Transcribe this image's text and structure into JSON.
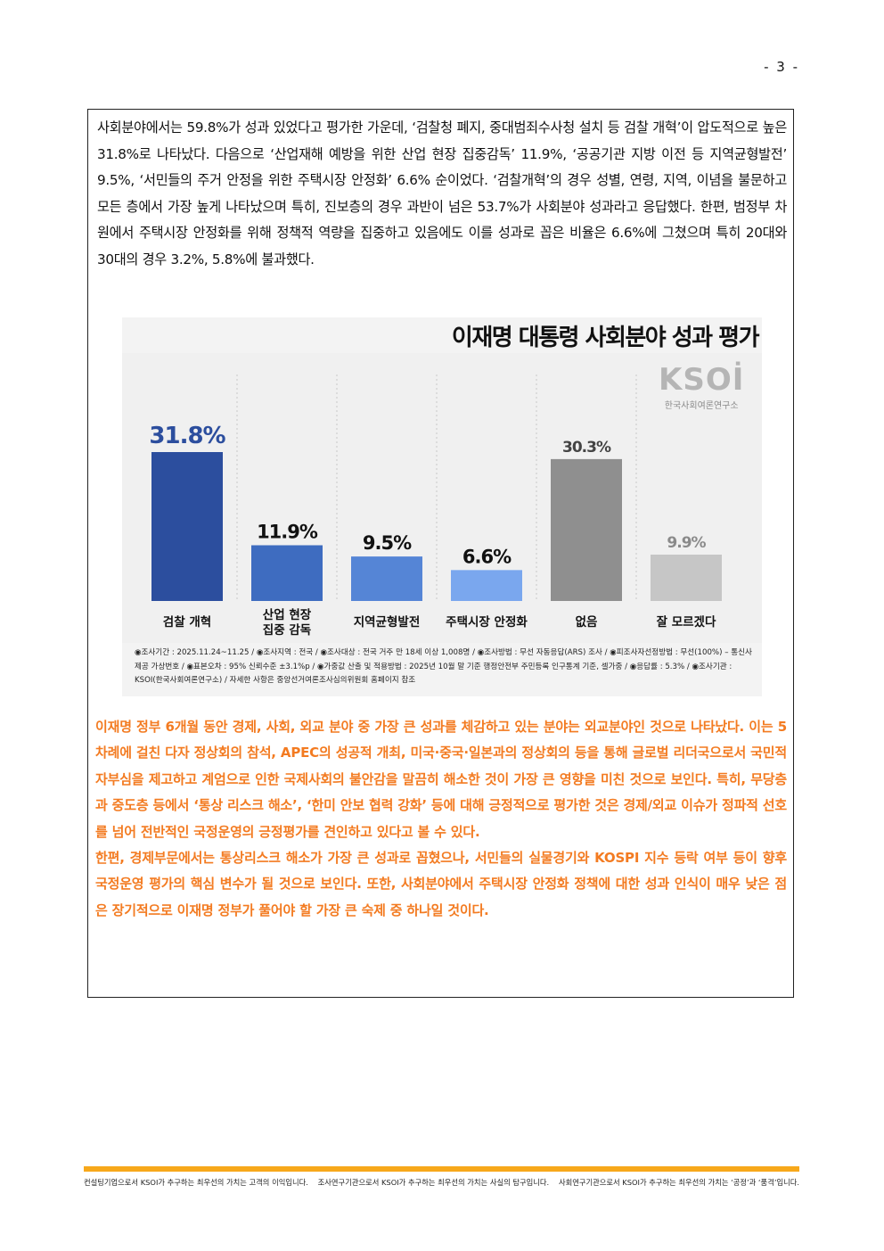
{
  "page_number": "- 3 -",
  "intro_text": "사회분야에서는 59.8%가 성과 있었다고 평가한 가운데, ‘검찰청 폐지, 중대범죄수사청 설치 등 검찰 개혁’이 압도적으로 높은 31.8%로 나타났다. 다음으로 ‘산업재해 예방을 위한 산업 현장 집중감독’ 11.9%, ‘공공기관 지방 이전 등 지역균형발전’ 9.5%, ‘서민들의 주거 안정을 위한 주택시장 안정화’ 6.6% 순이었다. ‘검찰개혁’의 경우 성별, 연령, 지역, 이념을 불문하고 모든 층에서 가장 높게 나타났으며 특히, 진보층의 경우 과반이 넘은 53.7%가 사회분야 성과라고 응답했다. 한편, 범정부 차원에서 주택시장 안정화를 위해 정책적 역량을 집중하고 있음에도 이를 성과로 꼽은 비율은 6.6%에 그쳤으며 특히 20대와 30대의 경우 3.2%, 5.8%에 불과했다.",
  "logo": {
    "mark": "KSOİ",
    "sub": "한국사회여론연구소"
  },
  "chart_data": {
    "type": "bar",
    "title": "이재명 대통령 사회분야 성과 평가",
    "categories": [
      "검찰 개혁",
      "산업 현장\n집중 감독",
      "지역균형발전",
      "주택시장 안정화",
      "없음",
      "잘 모르겠다"
    ],
    "values": [
      31.8,
      11.9,
      9.5,
      6.6,
      30.3,
      9.9
    ],
    "value_labels": [
      "31.8%",
      "11.9%",
      "9.5%",
      "6.6%",
      "30.3%",
      "9.9%"
    ],
    "colors": [
      "#2c4e9e",
      "#3e6cc0",
      "#5585d6",
      "#7aa7ee",
      "#8f8f8f",
      "#c6c6c6"
    ],
    "label_colors": [
      "#2c4e9e",
      "#111111",
      "#111111",
      "#111111",
      "#444444",
      "#8a8a8a"
    ],
    "ylim": [
      0,
      35
    ],
    "grid": false
  },
  "notes": "◉조사기간 : 2025.11.24~11.25 / ◉조사지역 : 전국 / ◉조사대상 : 전국 거주 만 18세 이상 1,008명 / ◉조사방법 : 무선 자동응답(ARS) 조사 / ◉피조사자선정방법 : 무선(100%) – 통신사 제공 가상번호 / ◉표본오차 : 95% 신뢰수준 ±3.1%p / ◉가중값 산출 및 적용방법 : 2025년 10월 말 기준 행정안전부 주민등록 인구통계 기준, 셀가중 / ◉응답률 : 5.3% / ◉조사기관 : KSOI(한국사회여론연구소) / 자세한 사항은 중앙선거여론조사심의위원회 홈페이지 참조",
  "conclusion": [
    "이재명 정부 6개월 동안 경제, 사회, 외교 분야 중 가장 큰 성과를 체감하고 있는 분야는 외교분야인 것으로 나타났다. 이는 5차례에 걸친 다자 정상회의 참석, APEC의 성공적 개최, 미국·중국·일본과의 정상회의 등을 통해 글로벌 리더국으로서 국민적 자부심을 제고하고 계엄으로 인한 국제사회의 불안감을 말끔히 해소한 것이 가장 큰 영향을 미친 것으로 보인다. 특히, 무당층과 중도층 등에서 ‘통상 리스크 해소’, ‘한미 안보 협력 강화’ 등에 대해 긍정적으로 평가한 것은 경제/외교 이슈가 정파적 선호를 넘어 전반적인 국정운영의 긍정평가를 견인하고 있다고 볼 수 있다.",
    "한편, 경제부문에서는 통상리스크 해소가 가장 큰 성과로 꼽혔으나, 서민들의 실물경기와 KOSPI 지수 등락 여부 등이 향후 국정운영 평가의 핵심 변수가 될 것으로 보인다. 또한, 사회분야에서 주택시장 안정화 정책에 대한 성과 인식이 매우 낮은 점은 장기적으로 이재명 정부가 풀어야 할 가장 큰 숙제 중 하나일 것이다."
  ],
  "footer": [
    "컨설팅기업으로서 KSOI가 추구하는 최우선의 가치는 고객의 이익입니다.",
    "조사연구기관으로서 KSOI가 추구하는 최우선의 가치는 사실의 탐구입니다.",
    "사회연구기관으로서 KSOI가 추구하는 최우선의 가치는 ‘공정’과 ‘품격’입니다."
  ]
}
